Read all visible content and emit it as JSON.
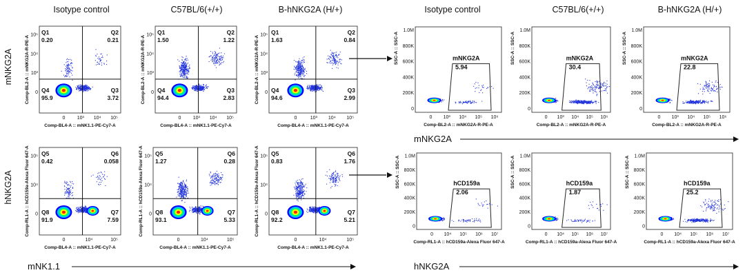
{
  "columns": [
    "Isotype control",
    "C57BL/6(+/+)",
    "B-hNKG2A (H/+)"
  ],
  "row_labels": [
    "mNKG2A",
    "hNKG2A"
  ],
  "arrow_labels": [
    "mNKG2A",
    "mNK1.1",
    "hNKG2A"
  ],
  "colors": {
    "dot": "#2233dd",
    "density": [
      "#0000ff",
      "#00bfff",
      "#00ff66",
      "#ffff00",
      "#ff2200"
    ],
    "axis": "#222222",
    "text": "#111111"
  },
  "chart_data": [
    {
      "type": "scatter",
      "kind": "quadrant",
      "row": 1,
      "column": "Isotype control",
      "xlabel": "Comp-BL4-A :: mNK1.1-PE-Cy7-A",
      "ylabel": "Comp-BL2-A :: mNKG2A-R-PE-A",
      "x_ticks": [
        "0",
        "10³",
        "10⁴",
        "10⁵"
      ],
      "y_ticks": [
        "0",
        "10³",
        "10⁴",
        "10⁵"
      ],
      "quadrants": [
        {
          "name": "Q1",
          "value": "0.20"
        },
        {
          "name": "Q2",
          "value": "0.21"
        },
        {
          "name": "Q3",
          "value": "3.72"
        },
        {
          "name": "Q4",
          "value": "95.9"
        }
      ]
    },
    {
      "type": "scatter",
      "kind": "quadrant",
      "row": 1,
      "column": "C57BL/6(+/+)",
      "xlabel": "Comp-BL4-A :: mNK1.1-PE-Cy7-A",
      "ylabel": "Comp-BL2-A :: mNKG2A-R-PE-A",
      "x_ticks": [
        "0",
        "10³",
        "10⁴",
        "10⁵"
      ],
      "y_ticks": [
        "0",
        "10³",
        "10⁴",
        "10⁵"
      ],
      "quadrants": [
        {
          "name": "Q1",
          "value": "1.50"
        },
        {
          "name": "Q2",
          "value": "1.22"
        },
        {
          "name": "Q3",
          "value": "2.83"
        },
        {
          "name": "Q4",
          "value": "94.4"
        }
      ]
    },
    {
      "type": "scatter",
      "kind": "quadrant",
      "row": 1,
      "column": "B-hNKG2A (H/+)",
      "xlabel": "Comp-BL4-A :: mNK1.1-PE-Cy7-A",
      "ylabel": "Comp-BL2-A :: mNKG2A-R-PE-A",
      "x_ticks": [
        "0",
        "10³",
        "10⁴",
        "10⁵"
      ],
      "y_ticks": [
        "0",
        "10³",
        "10⁴",
        "10⁵"
      ],
      "quadrants": [
        {
          "name": "Q1",
          "value": "1.63"
        },
        {
          "name": "Q2",
          "value": "0.84"
        },
        {
          "name": "Q3",
          "value": "2.99"
        },
        {
          "name": "Q4",
          "value": "94.6"
        }
      ]
    },
    {
      "type": "scatter",
      "kind": "quadrant",
      "row": 2,
      "column": "Isotype control",
      "xlabel": "Comp-BL4-A :: mNK1.1-PE-Cy7-A",
      "ylabel": "Comp-RL1-A :: hCD159a-Alexa Fluor 647-A",
      "x_ticks": [
        "0",
        "10⁴",
        "10⁵"
      ],
      "y_ticks": [
        "0",
        "10⁴",
        "10⁵"
      ],
      "quadrants": [
        {
          "name": "Q5",
          "value": "0.42"
        },
        {
          "name": "Q6",
          "value": "0.058"
        },
        {
          "name": "Q7",
          "value": "7.59"
        },
        {
          "name": "Q8",
          "value": "91.9"
        }
      ]
    },
    {
      "type": "scatter",
      "kind": "quadrant",
      "row": 2,
      "column": "C57BL/6(+/+)",
      "xlabel": "Comp-BL4-A :: mNK1.1-PE-Cy7-A",
      "ylabel": "Comp-RL1-A :: hCD159a-Alexa Fluor 647-A",
      "x_ticks": [
        "0",
        "10⁴",
        "10⁵"
      ],
      "y_ticks": [
        "0",
        "10⁴",
        "10⁵"
      ],
      "quadrants": [
        {
          "name": "Q5",
          "value": "1.27"
        },
        {
          "name": "Q6",
          "value": "0.28"
        },
        {
          "name": "Q7",
          "value": "5.33"
        },
        {
          "name": "Q8",
          "value": "93.1"
        }
      ]
    },
    {
      "type": "scatter",
      "kind": "quadrant",
      "row": 2,
      "column": "B-hNKG2A (H/+)",
      "xlabel": "Comp-BL4-A :: mNK1.1-PE-Cy7-A",
      "ylabel": "Comp-RL1-A :: hCD159a-Alexa Fluor 647-A",
      "x_ticks": [
        "0",
        "10⁴",
        "10⁵"
      ],
      "y_ticks": [
        "0",
        "10⁴",
        "10⁵"
      ],
      "quadrants": [
        {
          "name": "Q5",
          "value": "0.83"
        },
        {
          "name": "Q6",
          "value": "1.76"
        },
        {
          "name": "Q7",
          "value": "5.21"
        },
        {
          "name": "Q8",
          "value": "92.2"
        }
      ]
    },
    {
      "type": "scatter",
      "kind": "gate",
      "row": 1,
      "column": "Isotype control",
      "xlabel": "Comp-BL2-A :: mNKG2A-R-PE-A",
      "ylabel": "SSC-A :: SSC-A",
      "x_ticks": [
        "0",
        "10³",
        "10⁴",
        "10⁵",
        "10⁶"
      ],
      "y_ticks": [
        "0",
        "200K",
        "400K",
        "600K",
        "800K",
        "1.0M"
      ],
      "gate": {
        "name": "mNKG2A",
        "value": "5.94"
      }
    },
    {
      "type": "scatter",
      "kind": "gate",
      "row": 1,
      "column": "C57BL/6(+/+)",
      "xlabel": "Comp-BL2-A :: mNKG2A-R-PE-A",
      "ylabel": "SSC-A :: SSC-A",
      "x_ticks": [
        "0",
        "10³",
        "10⁴",
        "10⁵",
        "10⁶"
      ],
      "y_ticks": [
        "0",
        "200K",
        "400K",
        "600K",
        "800K",
        "1.0M"
      ],
      "gate": {
        "name": "mNKG2A",
        "value": "30.4"
      }
    },
    {
      "type": "scatter",
      "kind": "gate",
      "row": 1,
      "column": "B-hNKG2A (H/+)",
      "xlabel": "Comp-BL2-A :: mNKG2A-R-PE-A",
      "ylabel": "SSC-A :: SSC-A",
      "x_ticks": [
        "0",
        "10³",
        "10⁴",
        "10⁵",
        "10⁶"
      ],
      "y_ticks": [
        "0",
        "200K",
        "400K",
        "600K",
        "800K",
        "1.0M"
      ],
      "gate": {
        "name": "mNKG2A",
        "value": "22.8"
      }
    },
    {
      "type": "scatter",
      "kind": "gate",
      "row": 2,
      "column": "Isotype control",
      "xlabel": "Comp-RL1-A :: hCD159a-Alexa Fluor 647-A",
      "ylabel": "SSC-A :: SSC-A",
      "x_ticks": [
        "0",
        "10⁴",
        "10⁵",
        "10⁶",
        "10⁷"
      ],
      "y_ticks": [
        "0",
        "200K",
        "400K",
        "600K",
        "800K",
        "1.0M"
      ],
      "gate": {
        "name": "hCD159a",
        "value": "2.06"
      }
    },
    {
      "type": "scatter",
      "kind": "gate",
      "row": 2,
      "column": "C57BL/6(+/+)",
      "xlabel": "Comp-RL1-A :: hCD159a-Alexa Fluor 647-A",
      "ylabel": "SSC-A :: SSC-A",
      "x_ticks": [
        "0",
        "10⁴",
        "10⁵",
        "10⁶",
        "10⁷"
      ],
      "y_ticks": [
        "0",
        "200K",
        "400K",
        "600K",
        "800K",
        "1.0M"
      ],
      "gate": {
        "name": "hCD159a",
        "value": "1.87"
      }
    },
    {
      "type": "scatter",
      "kind": "gate",
      "row": 2,
      "column": "B-hNKG2A (H/+)",
      "xlabel": "Comp-RL1-A :: hCD159a-Alexa Fluor 647-A",
      "ylabel": "SSC-A :: SSC-A",
      "x_ticks": [
        "0",
        "10⁴",
        "10⁵",
        "10⁶",
        "10⁷"
      ],
      "y_ticks": [
        "0",
        "200K",
        "400K",
        "600K",
        "800K",
        "1.0M"
      ],
      "gate": {
        "name": "hCD159a",
        "value": "25.2"
      }
    }
  ]
}
